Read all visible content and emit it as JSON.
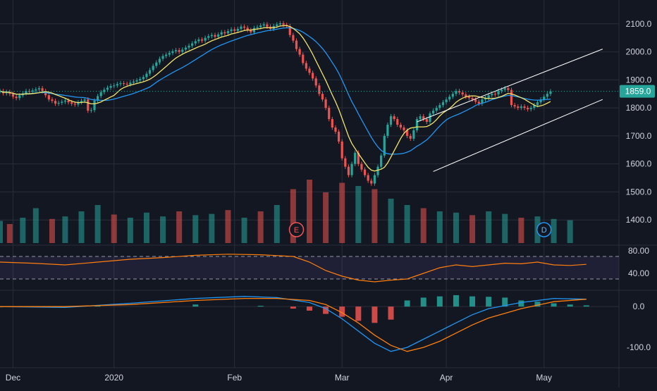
{
  "chart_data": {
    "type": "candlestick",
    "price_axis": {
      "ticks": [
        2100,
        2000,
        1900,
        1800,
        1700,
        1600,
        1500,
        1400
      ],
      "tick_labels": [
        "2100.0",
        "2000.0",
        "1900.0",
        "1800.0",
        "1700.0",
        "1600.0",
        "1500.0",
        "1400.0"
      ],
      "range": [
        1310,
        2185
      ]
    },
    "last_price": {
      "value": 1859,
      "label": "1859.0"
    },
    "time_axis": {
      "labels": [
        "Dec",
        "2020",
        "Feb",
        "Mar",
        "Apr",
        "May"
      ],
      "label_day_index": [
        4,
        35,
        72,
        105,
        137,
        167
      ]
    },
    "day_range": [
      0,
      190
    ],
    "closes": [
      1860,
      1852,
      1857,
      1850,
      1840,
      1835,
      1845,
      1852,
      1860,
      1858,
      1862,
      1866,
      1870,
      1860,
      1845,
      1830,
      1825,
      1815,
      1818,
      1822,
      1826,
      1820,
      1815,
      1812,
      1820,
      1825,
      1830,
      1790,
      1792,
      1826,
      1842,
      1856,
      1865,
      1872,
      1878,
      1880,
      1885,
      1888,
      1886,
      1884,
      1890,
      1894,
      1898,
      1903,
      1910,
      1922,
      1935,
      1950,
      1962,
      1975,
      1985,
      1990,
      1996,
      2002,
      2006,
      2000,
      2008,
      2015,
      2022,
      2030,
      2038,
      2044,
      2040,
      2050,
      2056,
      2060,
      2054,
      2062,
      2070,
      2066,
      2074,
      2080,
      2075,
      2082,
      2090,
      2086,
      2078,
      2070,
      2085,
      2088,
      2094,
      2098,
      2090,
      2082,
      2092,
      2098,
      2102,
      2096,
      2092,
      2060,
      2040,
      2010,
      1990,
      1960,
      1940,
      1925,
      1905,
      1880,
      1850,
      1830,
      1800,
      1760,
      1730,
      1715,
      1680,
      1620,
      1590,
      1560,
      1600,
      1640,
      1600,
      1580,
      1560,
      1540,
      1530,
      1560,
      1590,
      1630,
      1700,
      1740,
      1770,
      1760,
      1740,
      1730,
      1720,
      1700,
      1690,
      1720,
      1760,
      1770,
      1760,
      1750,
      1780,
      1790,
      1800,
      1810,
      1820,
      1830,
      1840,
      1850,
      1860,
      1855,
      1848,
      1840,
      1835,
      1830,
      1822,
      1815,
      1830,
      1835,
      1845,
      1850,
      1848,
      1860,
      1865,
      1870,
      1864,
      1810,
      1805,
      1800,
      1805,
      1800,
      1795,
      1800,
      1810,
      1820,
      1830,
      1840,
      1850,
      1859
    ],
    "volume": [
      {
        "day": 0,
        "v": 0.35,
        "up": true
      },
      {
        "day": 3,
        "v": 0.3,
        "up": false
      },
      {
        "day": 7,
        "v": 0.4,
        "up": true
      },
      {
        "day": 11,
        "v": 0.55,
        "up": true
      },
      {
        "day": 16,
        "v": 0.38,
        "up": false
      },
      {
        "day": 20,
        "v": 0.42,
        "up": true
      },
      {
        "day": 25,
        "v": 0.5,
        "up": true
      },
      {
        "day": 30,
        "v": 0.6,
        "up": true
      },
      {
        "day": 35,
        "v": 0.45,
        "up": false
      },
      {
        "day": 40,
        "v": 0.4,
        "up": true
      },
      {
        "day": 45,
        "v": 0.48,
        "up": true
      },
      {
        "day": 50,
        "v": 0.42,
        "up": true
      },
      {
        "day": 55,
        "v": 0.5,
        "up": false
      },
      {
        "day": 60,
        "v": 0.44,
        "up": true
      },
      {
        "day": 65,
        "v": 0.46,
        "up": true
      },
      {
        "day": 70,
        "v": 0.52,
        "up": false
      },
      {
        "day": 75,
        "v": 0.4,
        "up": true
      },
      {
        "day": 80,
        "v": 0.5,
        "up": false
      },
      {
        "day": 85,
        "v": 0.6,
        "up": true
      },
      {
        "day": 90,
        "v": 0.85,
        "up": false
      },
      {
        "day": 95,
        "v": 1.0,
        "up": false
      },
      {
        "day": 100,
        "v": 0.8,
        "up": false
      },
      {
        "day": 105,
        "v": 0.95,
        "up": false
      },
      {
        "day": 110,
        "v": 0.9,
        "up": true
      },
      {
        "day": 115,
        "v": 0.85,
        "up": false
      },
      {
        "day": 120,
        "v": 0.7,
        "up": true
      },
      {
        "day": 125,
        "v": 0.6,
        "up": true
      },
      {
        "day": 130,
        "v": 0.55,
        "up": false
      },
      {
        "day": 135,
        "v": 0.5,
        "up": true
      },
      {
        "day": 140,
        "v": 0.48,
        "up": true
      },
      {
        "day": 145,
        "v": 0.44,
        "up": false
      },
      {
        "day": 150,
        "v": 0.5,
        "up": true
      },
      {
        "day": 155,
        "v": 0.46,
        "up": true
      },
      {
        "day": 160,
        "v": 0.4,
        "up": false
      },
      {
        "day": 165,
        "v": 0.42,
        "up": true
      },
      {
        "day": 170,
        "v": 0.38,
        "up": true
      },
      {
        "day": 175,
        "v": 0.36,
        "up": true
      }
    ],
    "events": [
      {
        "label": "E",
        "day": 91
      },
      {
        "label": "D",
        "day": 167
      }
    ],
    "channel": {
      "upper": [
        [
          128,
          1750
        ],
        [
          185,
          2010
        ]
      ],
      "lower": [
        [
          133,
          1573
        ],
        [
          185,
          1830
        ]
      ]
    },
    "rsi": {
      "ticks": [
        80,
        40
      ],
      "tick_labels": [
        "80.00",
        "40.00"
      ],
      "band": [
        70,
        30
      ],
      "range": [
        10,
        90
      ],
      "values": [
        [
          0,
          60
        ],
        [
          10,
          58
        ],
        [
          20,
          55
        ],
        [
          30,
          60
        ],
        [
          40,
          65
        ],
        [
          50,
          68
        ],
        [
          60,
          72
        ],
        [
          70,
          74
        ],
        [
          80,
          73
        ],
        [
          90,
          70
        ],
        [
          95,
          60
        ],
        [
          100,
          45
        ],
        [
          105,
          35
        ],
        [
          110,
          28
        ],
        [
          115,
          25
        ],
        [
          120,
          28
        ],
        [
          125,
          30
        ],
        [
          130,
          40
        ],
        [
          135,
          50
        ],
        [
          140,
          55
        ],
        [
          145,
          52
        ],
        [
          150,
          55
        ],
        [
          155,
          58
        ],
        [
          160,
          57
        ],
        [
          165,
          60
        ],
        [
          170,
          55
        ],
        [
          175,
          54
        ],
        [
          180,
          56
        ]
      ]
    },
    "macd": {
      "ticks": [
        0,
        -100
      ],
      "tick_labels": [
        "0.0",
        "-100.0"
      ],
      "range": [
        -150,
        40
      ],
      "macd_line": [
        [
          0,
          0
        ],
        [
          20,
          -2
        ],
        [
          40,
          8
        ],
        [
          60,
          20
        ],
        [
          75,
          25
        ],
        [
          85,
          22
        ],
        [
          95,
          10
        ],
        [
          100,
          -5
        ],
        [
          105,
          -30
        ],
        [
          110,
          -60
        ],
        [
          115,
          -90
        ],
        [
          120,
          -110
        ],
        [
          125,
          -100
        ],
        [
          130,
          -80
        ],
        [
          135,
          -60
        ],
        [
          140,
          -40
        ],
        [
          145,
          -20
        ],
        [
          150,
          -5
        ],
        [
          160,
          10
        ],
        [
          170,
          20
        ],
        [
          180,
          18
        ]
      ],
      "signal_line": [
        [
          0,
          0
        ],
        [
          20,
          0
        ],
        [
          40,
          5
        ],
        [
          60,
          15
        ],
        [
          75,
          20
        ],
        [
          85,
          20
        ],
        [
          95,
          15
        ],
        [
          100,
          5
        ],
        [
          105,
          -15
        ],
        [
          110,
          -40
        ],
        [
          115,
          -70
        ],
        [
          120,
          -95
        ],
        [
          125,
          -110
        ],
        [
          130,
          -100
        ],
        [
          135,
          -85
        ],
        [
          140,
          -65
        ],
        [
          145,
          -45
        ],
        [
          150,
          -28
        ],
        [
          160,
          -5
        ],
        [
          170,
          12
        ],
        [
          180,
          18
        ]
      ],
      "histogram": [
        [
          0,
          0
        ],
        [
          30,
          3
        ],
        [
          60,
          5
        ],
        [
          80,
          2
        ],
        [
          90,
          -5
        ],
        [
          95,
          -10
        ],
        [
          100,
          -18
        ],
        [
          105,
          -25
        ],
        [
          110,
          -35
        ],
        [
          115,
          -40
        ],
        [
          120,
          -32
        ],
        [
          125,
          15
        ],
        [
          130,
          22
        ],
        [
          135,
          25
        ],
        [
          140,
          28
        ],
        [
          145,
          25
        ],
        [
          150,
          24
        ],
        [
          155,
          22
        ],
        [
          160,
          15
        ],
        [
          165,
          12
        ],
        [
          170,
          8
        ],
        [
          175,
          5
        ],
        [
          180,
          3
        ]
      ]
    }
  }
}
